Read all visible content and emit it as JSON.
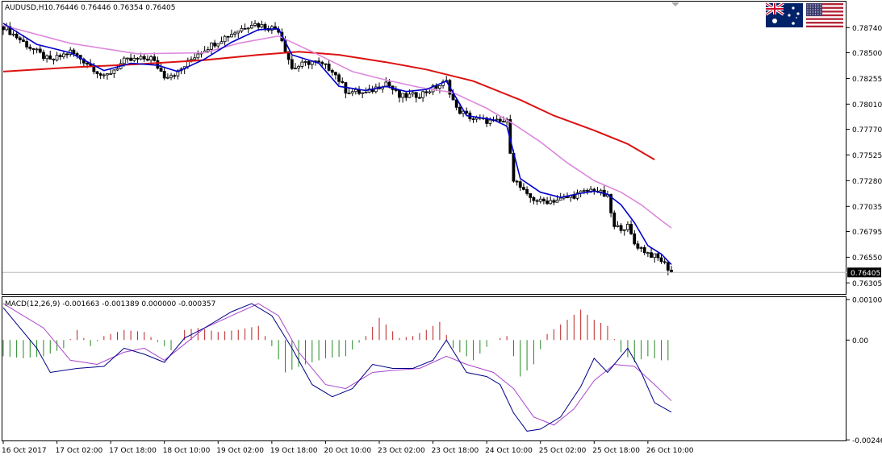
{
  "header": {
    "symbol": "AUDUSD,H1",
    "ohlc": "0.76446 0.76446 0.76354 0.76405"
  },
  "macd_header": "MACD(12,26,9) -0.001663 -0.001389 0.000000 -0.000357",
  "colors": {
    "price_bar": "#000000",
    "ma_fast": "#0000cc",
    "ma_mid": "#dd88dd",
    "ma_slow": "#dd1111",
    "macd_hist_pos": "#bb2222",
    "macd_hist_neg": "#228822",
    "macd_line": "#000088",
    "signal_line": "#aa44cc",
    "current_price_line": "#bbbbbb"
  },
  "icons": [
    "down-arrow-icon",
    "australia-flag-icon",
    "usa-flag-icon"
  ],
  "chart_data": [
    {
      "type": "ohlc-bar",
      "title": "AUDUSD,H1",
      "y_ticks": [
        "0.78740",
        "0.78500",
        "0.78255",
        "0.78010",
        "0.77770",
        "0.77525",
        "0.77280",
        "0.77035",
        "0.76795",
        "0.76550",
        "0.76305"
      ],
      "current_price_label": "0.76405",
      "ylim": [
        0.762,
        0.7898
      ],
      "x_tick_labels": [
        "16 Oct 2017",
        "17 Oct 02:00",
        "17 Oct 18:00",
        "18 Oct 10:00",
        "19 Oct 02:00",
        "19 Oct 18:00",
        "20 Oct 10:00",
        "23 Oct 02:00",
        "23 Oct 18:00",
        "24 Oct 10:00",
        "25 Oct 02:00",
        "25 Oct 18:00",
        "26 Oct 10:00"
      ],
      "bars_total": 200,
      "price_path": [
        [
          0,
          0.7875
        ],
        [
          8,
          0.7855
        ],
        [
          14,
          0.7842
        ],
        [
          20,
          0.7851
        ],
        [
          26,
          0.7838
        ],
        [
          30,
          0.7826
        ],
        [
          36,
          0.7842
        ],
        [
          44,
          0.7845
        ],
        [
          48,
          0.7828
        ],
        [
          52,
          0.7831
        ],
        [
          58,
          0.785
        ],
        [
          66,
          0.7865
        ],
        [
          74,
          0.7878
        ],
        [
          82,
          0.7872
        ],
        [
          86,
          0.7835
        ],
        [
          92,
          0.7842
        ],
        [
          98,
          0.7834
        ],
        [
          102,
          0.7814
        ],
        [
          108,
          0.7811
        ],
        [
          114,
          0.7822
        ],
        [
          118,
          0.7808
        ],
        [
          124,
          0.781
        ],
        [
          132,
          0.7822
        ],
        [
          135,
          0.7796
        ],
        [
          140,
          0.7787
        ],
        [
          146,
          0.7784
        ],
        [
          150,
          0.7784
        ],
        [
          152,
          0.773
        ],
        [
          156,
          0.7713
        ],
        [
          160,
          0.7708
        ],
        [
          166,
          0.771
        ],
        [
          172,
          0.7716
        ],
        [
          176,
          0.772
        ],
        [
          180,
          0.7712
        ],
        [
          182,
          0.7683
        ],
        [
          186,
          0.7684
        ],
        [
          188,
          0.7668
        ],
        [
          192,
          0.7659
        ],
        [
          196,
          0.7652
        ],
        [
          199,
          0.7641
        ]
      ],
      "ma_fast": [
        [
          0,
          0.7878
        ],
        [
          10,
          0.7858
        ],
        [
          20,
          0.785
        ],
        [
          30,
          0.7833
        ],
        [
          38,
          0.784
        ],
        [
          46,
          0.7838
        ],
        [
          52,
          0.7832
        ],
        [
          60,
          0.7844
        ],
        [
          68,
          0.786
        ],
        [
          76,
          0.7872
        ],
        [
          82,
          0.7873
        ],
        [
          86,
          0.7848
        ],
        [
          94,
          0.784
        ],
        [
          100,
          0.7818
        ],
        [
          108,
          0.7814
        ],
        [
          114,
          0.7818
        ],
        [
          120,
          0.7813
        ],
        [
          126,
          0.7815
        ],
        [
          132,
          0.7823
        ],
        [
          138,
          0.779
        ],
        [
          146,
          0.7786
        ],
        [
          150,
          0.778
        ],
        [
          154,
          0.773
        ],
        [
          160,
          0.7717
        ],
        [
          166,
          0.7712
        ],
        [
          172,
          0.7716
        ],
        [
          176,
          0.7718
        ],
        [
          180,
          0.7715
        ],
        [
          184,
          0.7705
        ],
        [
          188,
          0.7688
        ],
        [
          192,
          0.7666
        ],
        [
          196,
          0.7658
        ],
        [
          199,
          0.7648
        ]
      ],
      "ma_mid": [
        [
          0,
          0.7876
        ],
        [
          20,
          0.7859
        ],
        [
          40,
          0.7849
        ],
        [
          60,
          0.785
        ],
        [
          70,
          0.7859
        ],
        [
          82,
          0.7866
        ],
        [
          92,
          0.7851
        ],
        [
          104,
          0.7832
        ],
        [
          114,
          0.7824
        ],
        [
          124,
          0.7817
        ],
        [
          134,
          0.7812
        ],
        [
          144,
          0.7797
        ],
        [
          152,
          0.7782
        ],
        [
          160,
          0.7765
        ],
        [
          168,
          0.7745
        ],
        [
          176,
          0.7728
        ],
        [
          184,
          0.7717
        ],
        [
          190,
          0.7705
        ],
        [
          196,
          0.769
        ],
        [
          199,
          0.7683
        ]
      ],
      "ma_slow": [
        [
          0,
          0.7832
        ],
        [
          20,
          0.7836
        ],
        [
          40,
          0.7839
        ],
        [
          60,
          0.7843
        ],
        [
          76,
          0.7848
        ],
        [
          88,
          0.7851
        ],
        [
          100,
          0.7848
        ],
        [
          114,
          0.7841
        ],
        [
          126,
          0.7834
        ],
        [
          140,
          0.7823
        ],
        [
          154,
          0.7805
        ],
        [
          164,
          0.779
        ],
        [
          176,
          0.7776
        ],
        [
          186,
          0.7763
        ],
        [
          194,
          0.7748
        ]
      ]
    },
    {
      "type": "macd",
      "title": "MACD(12,26,9) -0.001663 -0.001389 0.000000 -0.000357",
      "y_ticks": [
        "0.001002",
        "0.00",
        "-0.002465"
      ],
      "ylim": [
        -0.00246,
        0.00104
      ],
      "histogram": [
        [
          0,
          -0.0004
        ],
        [
          6,
          -0.00045
        ],
        [
          12,
          -0.0004
        ],
        [
          18,
          -0.0002
        ],
        [
          22,
          0.00025
        ],
        [
          26,
          -0.00015
        ],
        [
          30,
          0.0001
        ],
        [
          36,
          0.00025
        ],
        [
          42,
          0.0002
        ],
        [
          46,
          -5e-05
        ],
        [
          50,
          -0.00025
        ],
        [
          54,
          0.00025
        ],
        [
          58,
          0.0003
        ],
        [
          64,
          0.0002
        ],
        [
          70,
          0.00025
        ],
        [
          76,
          0.00035
        ],
        [
          80,
          -0.00015
        ],
        [
          84,
          -0.0008
        ],
        [
          90,
          -0.0006
        ],
        [
          96,
          -0.00045
        ],
        [
          102,
          -0.0004
        ],
        [
          108,
          0.0001
        ],
        [
          112,
          0.00055
        ],
        [
          118,
          5e-05
        ],
        [
          122,
          0.0001
        ],
        [
          126,
          0.00025
        ],
        [
          130,
          0.00045
        ],
        [
          134,
          -0.0002
        ],
        [
          140,
          -0.0005
        ],
        [
          146,
          0.0
        ],
        [
          150,
          0.0001
        ],
        [
          154,
          -0.0009
        ],
        [
          158,
          -0.0006
        ],
        [
          162,
          0.00015
        ],
        [
          168,
          0.0005
        ],
        [
          172,
          0.00075
        ],
        [
          176,
          0.0005
        ],
        [
          180,
          0.00035
        ],
        [
          184,
          -0.0003
        ],
        [
          188,
          -0.00055
        ],
        [
          192,
          -0.0004
        ],
        [
          196,
          -0.0005
        ],
        [
          199,
          -0.0005
        ]
      ],
      "macd_line": [
        [
          0,
          0.0008
        ],
        [
          10,
          -0.0002
        ],
        [
          14,
          -0.0008
        ],
        [
          22,
          -0.0007
        ],
        [
          30,
          -0.00065
        ],
        [
          36,
          -0.0002
        ],
        [
          42,
          -0.00035
        ],
        [
          48,
          -0.00055
        ],
        [
          54,
          5e-05
        ],
        [
          60,
          0.0003
        ],
        [
          68,
          0.0007
        ],
        [
          74,
          0.0009
        ],
        [
          80,
          0.0006
        ],
        [
          86,
          -0.0002
        ],
        [
          92,
          -0.0011
        ],
        [
          98,
          -0.0014
        ],
        [
          104,
          -0.0012
        ],
        [
          110,
          -0.0006
        ],
        [
          116,
          -0.0007
        ],
        [
          122,
          -0.0007
        ],
        [
          128,
          -0.0005
        ],
        [
          132,
          0.0
        ],
        [
          138,
          -0.0008
        ],
        [
          144,
          -0.0009
        ],
        [
          148,
          -0.0011
        ],
        [
          152,
          -0.0018
        ],
        [
          156,
          -0.00225
        ],
        [
          160,
          -0.0022
        ],
        [
          166,
          -0.0019
        ],
        [
          172,
          -0.00115
        ],
        [
          176,
          -0.00045
        ],
        [
          180,
          -0.0008
        ],
        [
          186,
          -0.0002
        ],
        [
          190,
          -0.0008
        ],
        [
          194,
          -0.00155
        ],
        [
          199,
          -0.00178
        ]
      ],
      "signal_line": [
        [
          0,
          0.0009
        ],
        [
          12,
          0.0003
        ],
        [
          20,
          -0.0005
        ],
        [
          28,
          -0.0006
        ],
        [
          36,
          -0.0003
        ],
        [
          42,
          -0.0002
        ],
        [
          48,
          -0.0005
        ],
        [
          54,
          -0.0001
        ],
        [
          60,
          0.0003
        ],
        [
          68,
          0.0006
        ],
        [
          76,
          0.0009
        ],
        [
          82,
          0.0006
        ],
        [
          88,
          -0.0003
        ],
        [
          96,
          -0.0011
        ],
        [
          102,
          -0.0012
        ],
        [
          110,
          -0.0008
        ],
        [
          116,
          -0.00075
        ],
        [
          124,
          -0.0007
        ],
        [
          132,
          -0.0004
        ],
        [
          138,
          -0.0006
        ],
        [
          146,
          -0.0008
        ],
        [
          152,
          -0.0012
        ],
        [
          158,
          -0.0019
        ],
        [
          164,
          -0.0021
        ],
        [
          170,
          -0.0017
        ],
        [
          176,
          -0.001
        ],
        [
          182,
          -0.0006
        ],
        [
          188,
          -0.00065
        ],
        [
          194,
          -0.0011
        ],
        [
          199,
          -0.0015
        ]
      ]
    }
  ]
}
